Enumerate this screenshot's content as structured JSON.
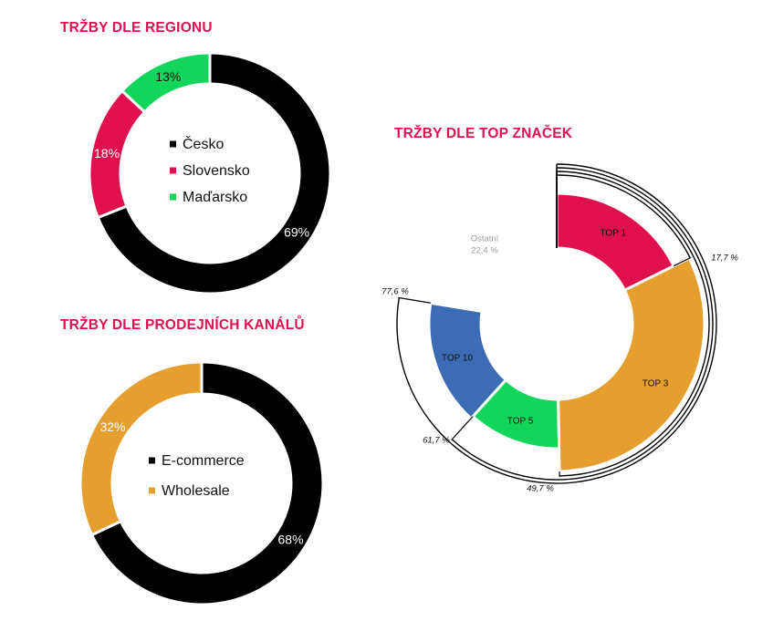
{
  "chart_data": [
    {
      "type": "pie",
      "title": "TRŽBY DLE REGIONU",
      "categories": [
        "Česko",
        "Slovensko",
        "Maďarsko"
      ],
      "values": [
        69,
        18,
        13
      ],
      "labels": [
        "69%",
        "18%",
        "13%"
      ],
      "colors": [
        "#000000",
        "#e0104f",
        "#12d65b"
      ],
      "legend": "center"
    },
    {
      "type": "pie",
      "title": "TRŽBY DLE PRODEJNÍCH KANÁLŮ",
      "categories": [
        "E-commerce",
        "Wholesale"
      ],
      "values": [
        68,
        32
      ],
      "labels": [
        "68%",
        "32%"
      ],
      "colors": [
        "#000000",
        "#e59f2e"
      ],
      "legend": "center"
    },
    {
      "type": "pie",
      "title": "TRŽBY DLE TOP ZNAČEK",
      "categories": [
        "TOP 1",
        "TOP 3",
        "TOP 5",
        "TOP 10",
        "Ostatní"
      ],
      "values": [
        17.7,
        32.0,
        12.0,
        15.9,
        22.4
      ],
      "colors": [
        "#e0104f",
        "#e59f2e",
        "#12d65b",
        "#3d6cb5",
        "#ffffff"
      ],
      "cumulative_labels": [
        "17,7 %",
        "49,7 %",
        "61,7 %",
        "77,6 %"
      ],
      "other_label": "Ostatní",
      "other_value": "22,4 %"
    }
  ]
}
